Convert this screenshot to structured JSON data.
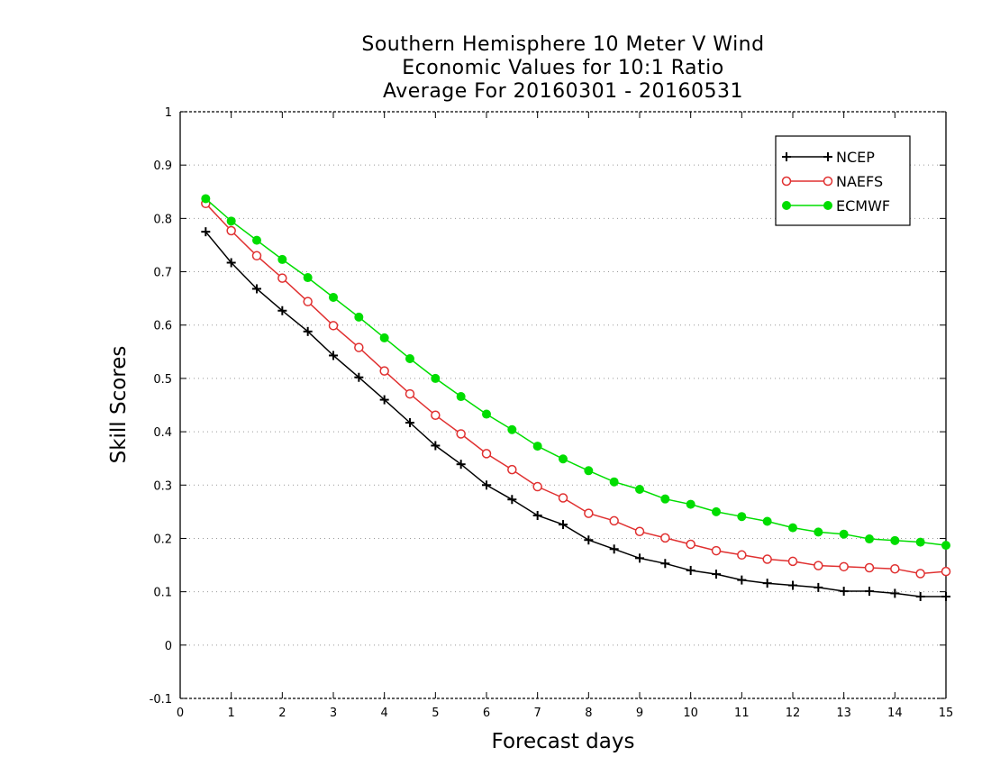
{
  "chart_data": {
    "type": "line",
    "title_lines": [
      "Southern Hemisphere 10 Meter V Wind",
      "Economic Values for 10:1 Ratio",
      "Average For 20160301 - 20160531"
    ],
    "xlabel": "Forecast days",
    "ylabel": "Skill Scores",
    "xlim": [
      0,
      15
    ],
    "ylim": [
      -0.1,
      1
    ],
    "xticks": [
      "0",
      "1",
      "2",
      "3",
      "4",
      "5",
      "6",
      "7",
      "8",
      "9",
      "10",
      "11",
      "12",
      "13",
      "14",
      "15"
    ],
    "yticks": [
      "-0.1",
      "0",
      "0.1",
      "0.2",
      "0.3",
      "0.4",
      "0.5",
      "0.6",
      "0.7",
      "0.8",
      "0.9",
      "1"
    ],
    "grid": "horizontal dotted",
    "legend_position": "top-right",
    "x": [
      0.5,
      1,
      1.5,
      2,
      2.5,
      3,
      3.5,
      4,
      4.5,
      5,
      5.5,
      6,
      6.5,
      7,
      7.5,
      8,
      8.5,
      9,
      9.5,
      10,
      10.5,
      11,
      11.5,
      12,
      12.5,
      13,
      13.5,
      14,
      14.5,
      15
    ],
    "series": [
      {
        "name": "NCEP",
        "color": "#000000",
        "marker": "plus",
        "values": [
          0.775,
          0.717,
          0.668,
          0.627,
          0.588,
          0.543,
          0.502,
          0.46,
          0.417,
          0.374,
          0.339,
          0.3,
          0.273,
          0.243,
          0.226,
          0.197,
          0.18,
          0.163,
          0.153,
          0.14,
          0.133,
          0.122,
          0.116,
          0.112,
          0.108,
          0.101,
          0.101,
          0.097,
          0.091,
          0.091
        ]
      },
      {
        "name": "NAEFS",
        "color": "#e03030",
        "marker": "open-circle",
        "values": [
          0.828,
          0.777,
          0.73,
          0.688,
          0.644,
          0.599,
          0.558,
          0.514,
          0.471,
          0.431,
          0.396,
          0.359,
          0.329,
          0.297,
          0.276,
          0.247,
          0.233,
          0.213,
          0.201,
          0.189,
          0.177,
          0.169,
          0.161,
          0.157,
          0.149,
          0.147,
          0.145,
          0.143,
          0.134,
          0.138
        ]
      },
      {
        "name": "ECMWF",
        "color": "#00dd00",
        "marker": "filled-circle",
        "values": [
          0.837,
          0.795,
          0.759,
          0.723,
          0.689,
          0.652,
          0.615,
          0.576,
          0.537,
          0.5,
          0.466,
          0.433,
          0.404,
          0.373,
          0.349,
          0.327,
          0.306,
          0.292,
          0.274,
          0.264,
          0.25,
          0.241,
          0.232,
          0.22,
          0.212,
          0.208,
          0.199,
          0.196,
          0.193,
          0.187
        ]
      }
    ]
  }
}
